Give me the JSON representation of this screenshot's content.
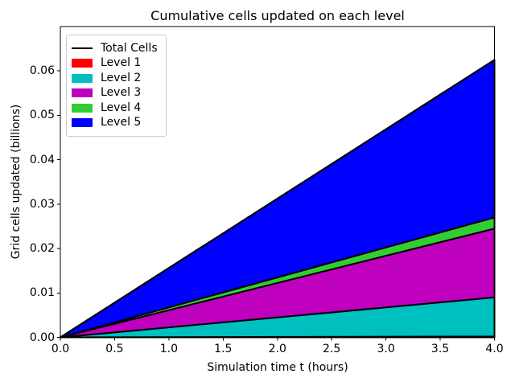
{
  "chart_data": {
    "type": "area",
    "stacked": true,
    "title": "Cumulative cells updated on each level",
    "xlabel": "Simulation time t (hours)",
    "ylabel": "Grid cells updated (billions)",
    "xlim": [
      0,
      4
    ],
    "ylim": [
      0,
      0.07
    ],
    "grid": false,
    "x": [
      0,
      4
    ],
    "series": [
      {
        "name": "Level 1",
        "color": "#ff0000",
        "values": [
          0,
          0.0002
        ]
      },
      {
        "name": "Level 2",
        "color": "#00bfbf",
        "values": [
          0,
          0.0088
        ]
      },
      {
        "name": "Level 3",
        "color": "#bf00bf",
        "values": [
          0,
          0.0155
        ]
      },
      {
        "name": "Level 4",
        "color": "#32cd32",
        "values": [
          0,
          0.0025
        ]
      },
      {
        "name": "Level 5",
        "color": "#0000ff",
        "values": [
          0,
          0.0355
        ]
      }
    ],
    "total_line": {
      "name": "Total Cells",
      "color": "#000000",
      "values": [
        0,
        0.0625
      ]
    },
    "edge_color": "#000000",
    "x_ticks": [
      0,
      0.5,
      1,
      1.5,
      2,
      2.5,
      3,
      3.5,
      4
    ],
    "x_tick_labels": [
      "0.0",
      "0.5",
      "1.0",
      "1.5",
      "2.0",
      "2.5",
      "3.0",
      "3.5",
      "4.0"
    ],
    "y_ticks": [
      0,
      0.01,
      0.02,
      0.03,
      0.04,
      0.05,
      0.06
    ],
    "y_tick_labels": [
      "0.00",
      "0.01",
      "0.02",
      "0.03",
      "0.04",
      "0.05",
      "0.06"
    ],
    "legend": {
      "position": "upper left",
      "items": [
        {
          "label": "Total Cells",
          "color": "#000000",
          "kind": "line"
        },
        {
          "label": "Level 1",
          "color": "#ff0000",
          "kind": "patch"
        },
        {
          "label": "Level 2",
          "color": "#00bfbf",
          "kind": "patch"
        },
        {
          "label": "Level 3",
          "color": "#bf00bf",
          "kind": "patch"
        },
        {
          "label": "Level 4",
          "color": "#32cd32",
          "kind": "patch"
        },
        {
          "label": "Level 5",
          "color": "#0000ff",
          "kind": "patch"
        }
      ]
    }
  }
}
